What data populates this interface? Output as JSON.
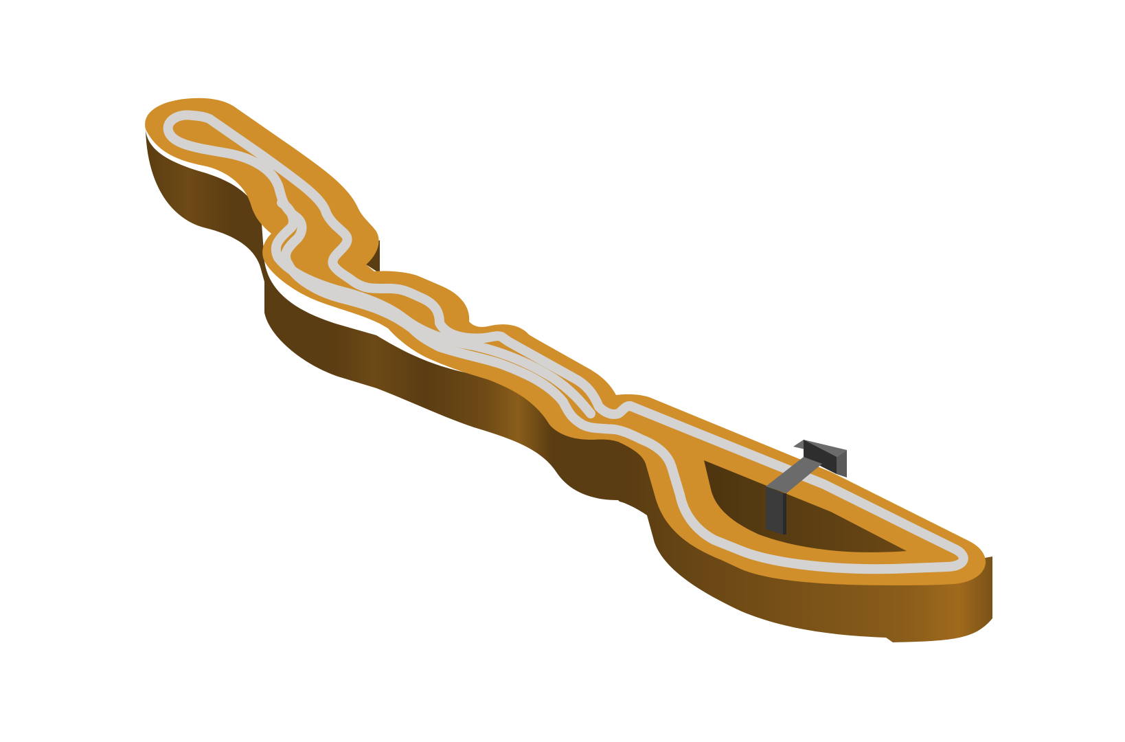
{
  "model": {
    "subject": "",
    "colors": {
      "background": "#ffffff",
      "top_surface": "#d08f2b",
      "side_dark": "#5a3d12",
      "side_mid": "#6e4a16",
      "side_light": "#a06a1c",
      "inner_wall": "#5b3e12",
      "track_line": "#d4d3d1",
      "gantry_top": "#6b6b6b",
      "gantry_side": "#3b3b3b",
      "gantry_dark": "#2a2a2a"
    },
    "icons": {
      "gantry": "bridge-gantry-icon"
    }
  }
}
